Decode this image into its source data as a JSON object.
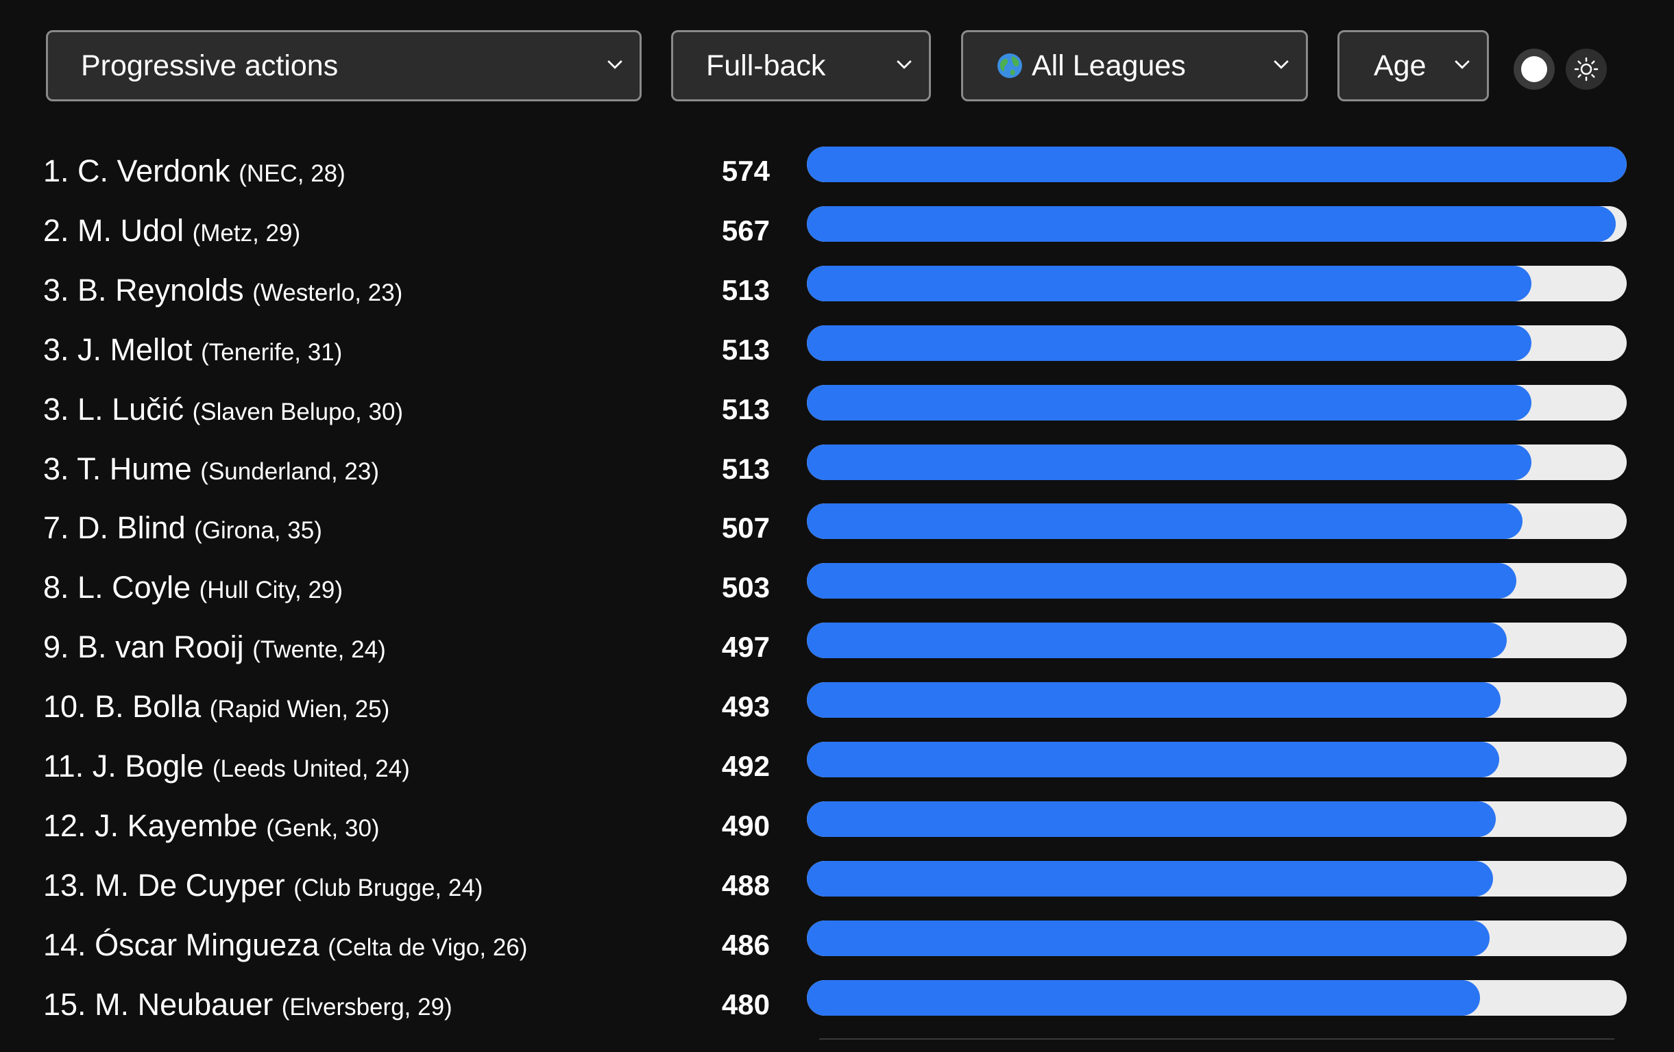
{
  "filters": {
    "metric": "Progressive actions",
    "position": "Full-back",
    "league": "All Leagues",
    "league_icon": "globe-icon",
    "sort": "Age"
  },
  "colors": {
    "background": "#0f0f0f",
    "bar_fill": "#2a75f3",
    "bar_track": "#ececec",
    "select_bg": "#2c2c2c"
  },
  "scale_max": 574,
  "players": [
    {
      "rank": "1.",
      "name": "C. Verdonk",
      "meta": "(NEC, 28)",
      "value": 574
    },
    {
      "rank": "2.",
      "name": "M. Udol",
      "meta": "(Metz, 29)",
      "value": 567
    },
    {
      "rank": "3.",
      "name": "B. Reynolds",
      "meta": "(Westerlo, 23)",
      "value": 513
    },
    {
      "rank": "3.",
      "name": "J. Mellot",
      "meta": "(Tenerife, 31)",
      "value": 513
    },
    {
      "rank": "3.",
      "name": "L. Lučić",
      "meta": "(Slaven Belupo, 30)",
      "value": 513
    },
    {
      "rank": "3.",
      "name": "T. Hume",
      "meta": "(Sunderland, 23)",
      "value": 513
    },
    {
      "rank": "7.",
      "name": "D. Blind",
      "meta": "(Girona, 35)",
      "value": 507
    },
    {
      "rank": "8.",
      "name": "L. Coyle",
      "meta": "(Hull City, 29)",
      "value": 503
    },
    {
      "rank": "9.",
      "name": "B. van Rooij",
      "meta": "(Twente, 24)",
      "value": 497
    },
    {
      "rank": "10.",
      "name": "B. Bolla",
      "meta": "(Rapid Wien, 25)",
      "value": 493
    },
    {
      "rank": "11.",
      "name": "J. Bogle",
      "meta": "(Leeds United, 24)",
      "value": 492
    },
    {
      "rank": "12.",
      "name": "J. Kayembe",
      "meta": "(Genk, 30)",
      "value": 490
    },
    {
      "rank": "13.",
      "name": "M. De Cuyper",
      "meta": "(Club Brugge, 24)",
      "value": 488
    },
    {
      "rank": "14.",
      "name": "Óscar Mingueza",
      "meta": "(Celta de Vigo, 26)",
      "value": 486
    },
    {
      "rank": "15.",
      "name": "M. Neubauer",
      "meta": "(Elversberg, 29)",
      "value": 480
    }
  ]
}
